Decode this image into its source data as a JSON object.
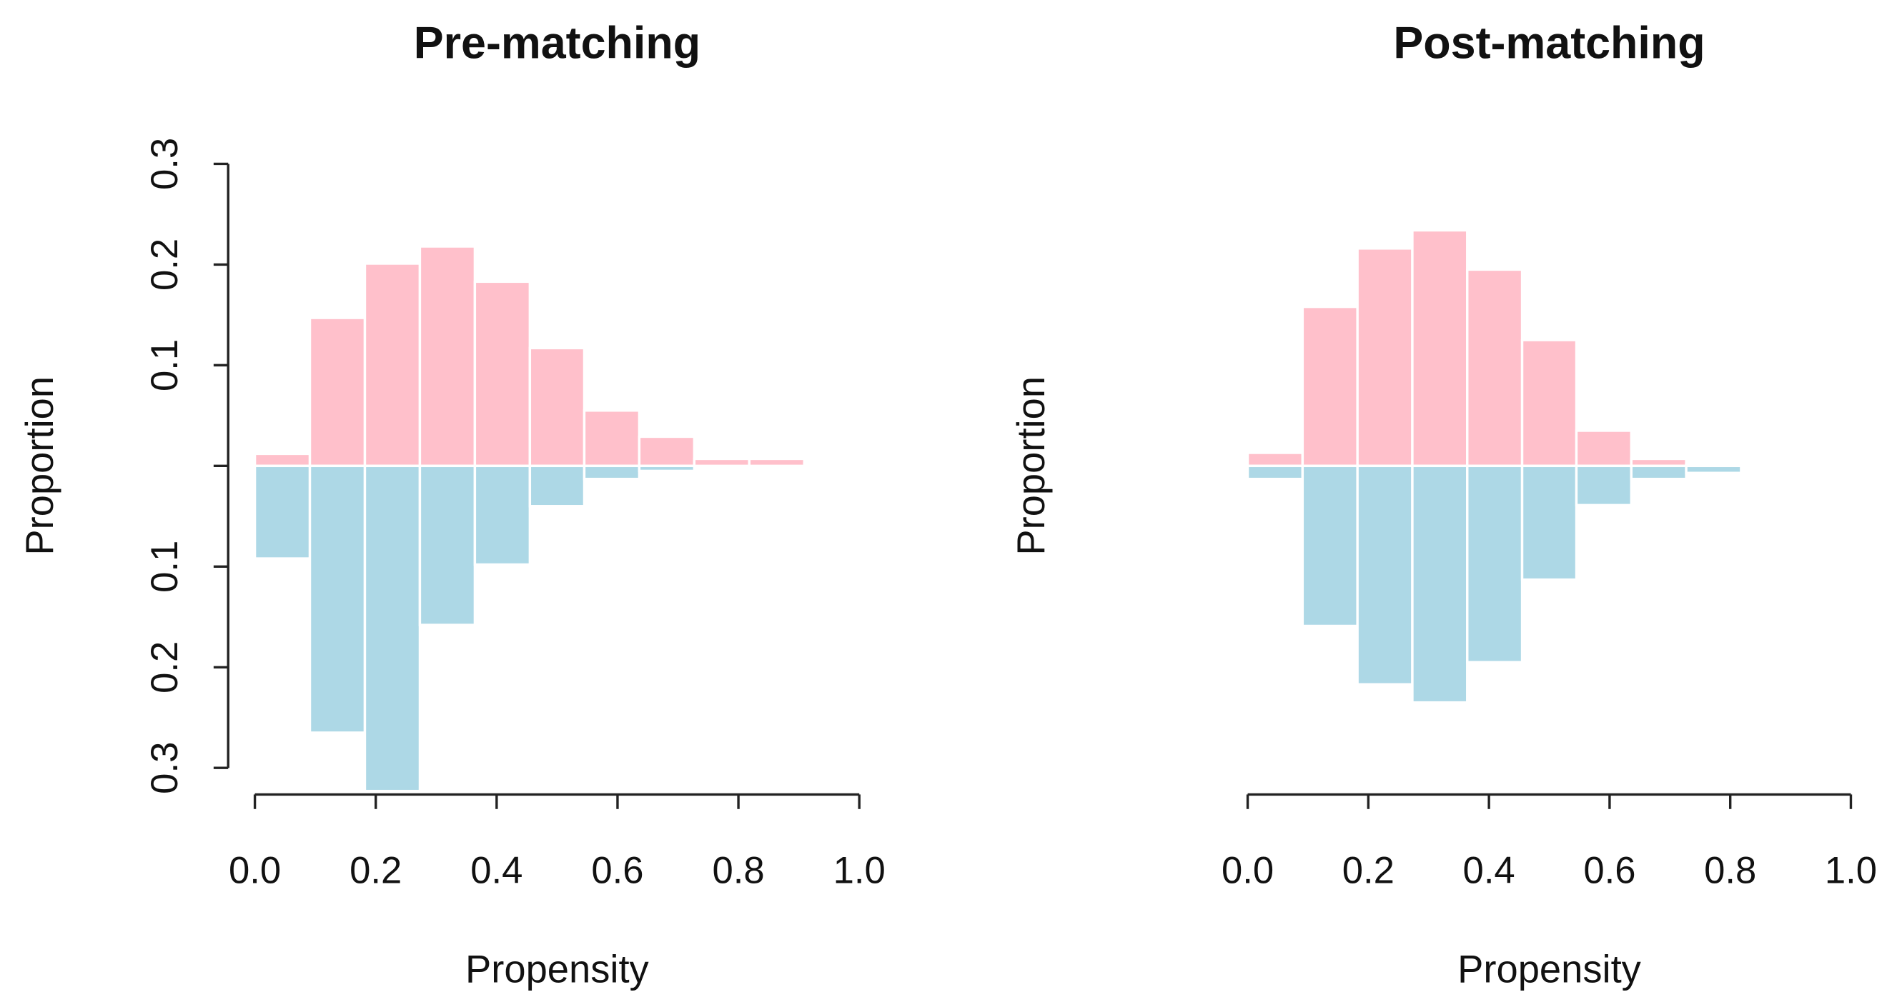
{
  "chart_data": [
    {
      "type": "mirrored-histogram",
      "title": "Pre-matching",
      "x_label": "Propensity",
      "y_label": "Proportion",
      "bins": [
        0,
        0.091,
        0.182,
        0.273,
        0.364,
        0.455,
        0.545,
        0.636,
        0.727,
        0.818,
        0.909,
        1.0
      ],
      "series": [
        {
          "color": "#ffc0cb",
          "values": [
            0.012,
            0.147,
            0.201,
            0.218,
            0.183,
            0.117,
            0.055,
            0.029,
            0.007,
            0.007,
            0.002
          ]
        },
        {
          "color": "#add8e6",
          "values": [
            -0.092,
            -0.265,
            -0.323,
            -0.158,
            -0.098,
            -0.04,
            -0.013,
            -0.005,
            0,
            0,
            0
          ]
        }
      ],
      "xlim": [
        0,
        1
      ],
      "xticks": [
        {
          "value": 0,
          "label": "0.0"
        },
        0.2,
        0.4,
        0.6,
        0.8,
        {
          "value": 1,
          "label": "1.0"
        }
      ],
      "ylim": [
        -0.33,
        0.3
      ],
      "yticks": [
        0.3,
        0.2,
        0.1,
        {
          "value": 0,
          "label": null
        },
        {
          "value": -0.1,
          "label": "0.1"
        },
        {
          "value": -0.2,
          "label": "0.2"
        },
        {
          "value": -0.3,
          "label": "0.3"
        }
      ]
    },
    {
      "type": "mirrored-histogram",
      "title": "Post-matching",
      "x_label": "Propensity",
      "y_label": "Proportion",
      "bins": [
        0,
        0.091,
        0.182,
        0.273,
        0.364,
        0.455,
        0.545,
        0.636,
        0.727,
        0.818,
        0.909,
        1.0
      ],
      "series": [
        {
          "color": "#ffc0cb",
          "values": [
            0.013,
            0.158,
            0.216,
            0.234,
            0.195,
            0.125,
            0.035,
            0.007,
            0.002,
            0.001,
            0
          ]
        },
        {
          "color": "#add8e6",
          "values": [
            -0.013,
            -0.159,
            -0.217,
            -0.235,
            -0.195,
            -0.113,
            -0.039,
            -0.013,
            -0.007,
            0,
            0
          ]
        }
      ],
      "xlim": [
        0,
        1
      ],
      "xticks": [
        {
          "value": 0,
          "label": "0.0"
        },
        0.2,
        0.4,
        0.6,
        0.8,
        {
          "value": 1,
          "label": "1.0"
        }
      ],
      "ylim": [
        -0.33,
        0.3
      ]
    }
  ]
}
